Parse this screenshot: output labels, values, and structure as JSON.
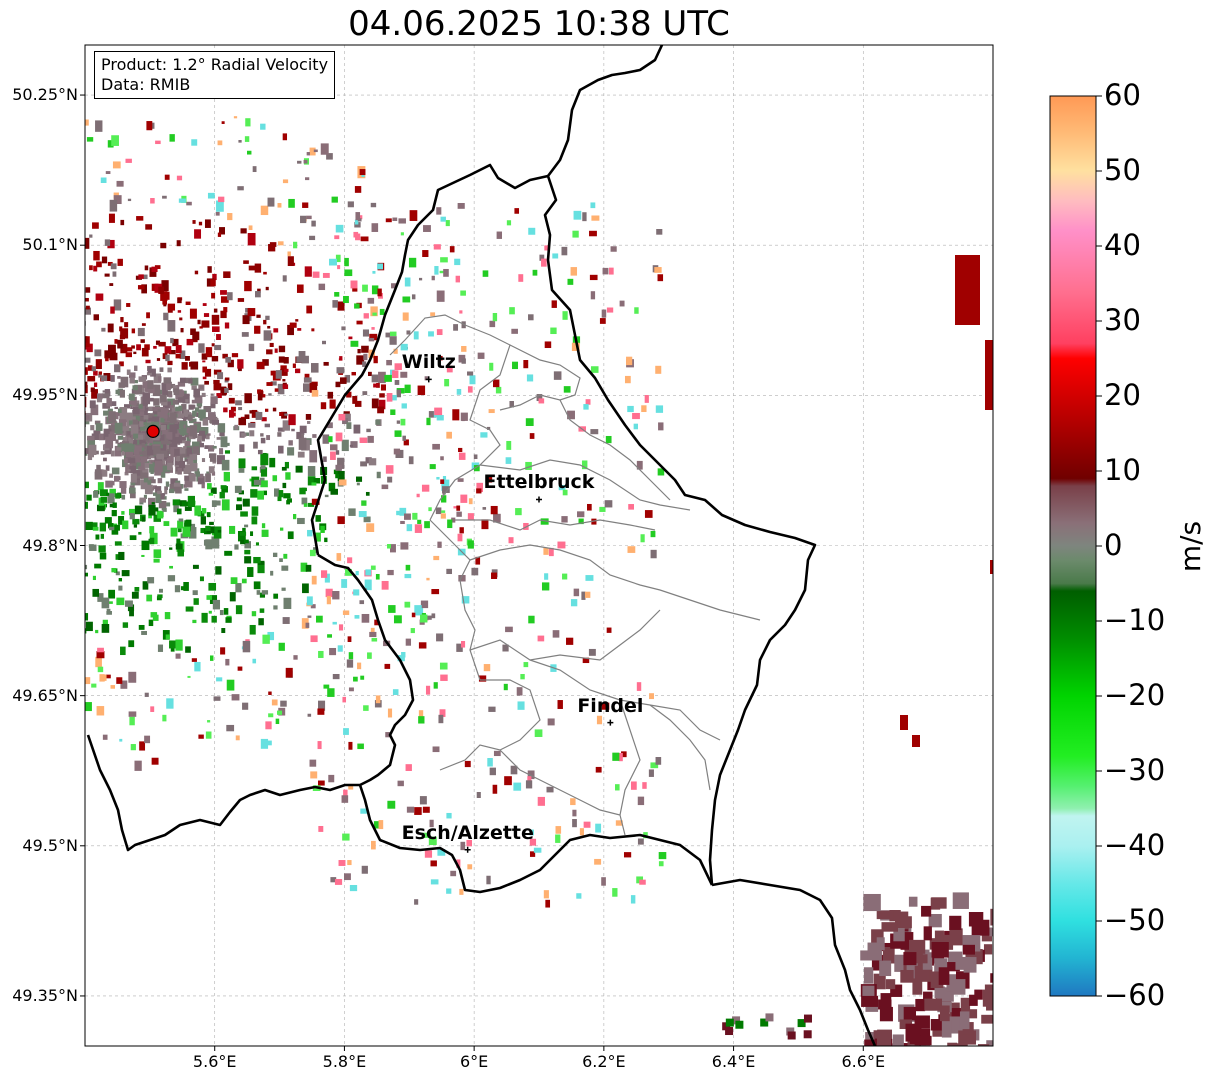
{
  "title": "04.06.2025 10:38 UTC",
  "info": {
    "product": "Product: 1.2° Radial Velocity",
    "data_source": "Data: RMIB"
  },
  "lat_ticks": [
    {
      "label": "50.25°N",
      "value": 50.25
    },
    {
      "label": "50.1°N",
      "value": 50.1
    },
    {
      "label": "49.95°N",
      "value": 49.95
    },
    {
      "label": "49.8°N",
      "value": 49.8
    },
    {
      "label": "49.65°N",
      "value": 49.65
    },
    {
      "label": "49.5°N",
      "value": 49.5
    },
    {
      "label": "49.35°N",
      "value": 49.35
    }
  ],
  "lon_ticks": [
    {
      "label": "5.6°E",
      "value": 5.6
    },
    {
      "label": "5.8°E",
      "value": 5.8
    },
    {
      "label": "6°E",
      "value": 6.0
    },
    {
      "label": "6.2°E",
      "value": 6.2
    },
    {
      "label": "6.4°E",
      "value": 6.4
    },
    {
      "label": "6.6°E",
      "value": 6.6
    }
  ],
  "extent": {
    "lon_min": 5.4,
    "lon_max": 6.8,
    "lat_min": 49.3,
    "lat_max": 50.3
  },
  "cities": [
    {
      "name": "Wiltz",
      "lon": 5.93,
      "lat": 49.966
    },
    {
      "name": "Ettelbruck",
      "lon": 6.1,
      "lat": 49.846
    },
    {
      "name": "Findel",
      "lon": 6.21,
      "lat": 49.623
    },
    {
      "name": "Esch/Alzette",
      "lon": 5.99,
      "lat": 49.496
    }
  ],
  "radar_site": {
    "lon": 5.505,
    "lat": 49.914
  },
  "colorbar": {
    "unit": "m/s",
    "min": -60,
    "max": 60,
    "ticks": [
      "60",
      "50",
      "40",
      "30",
      "20",
      "10",
      "0",
      "−10",
      "−20",
      "−30",
      "−40",
      "−50",
      "−60"
    ],
    "stops": [
      {
        "v": -60,
        "c": "#1f78c1"
      },
      {
        "v": -55,
        "c": "#22b4d2"
      },
      {
        "v": -50,
        "c": "#2fe0e0"
      },
      {
        "v": -45,
        "c": "#66e8e8"
      },
      {
        "v": -40,
        "c": "#aaf0f0"
      },
      {
        "v": -36,
        "c": "#c0f4f0"
      },
      {
        "v": -35,
        "c": "#90f0b0"
      },
      {
        "v": -32,
        "c": "#55f070"
      },
      {
        "v": -28,
        "c": "#22ee22"
      },
      {
        "v": -20,
        "c": "#00d400"
      },
      {
        "v": -12,
        "c": "#008a00"
      },
      {
        "v": -6,
        "c": "#005e00"
      },
      {
        "v": -5,
        "c": "#4a7a4a"
      },
      {
        "v": -2,
        "c": "#6b8a6b"
      },
      {
        "v": 0,
        "c": "#7e857e"
      },
      {
        "v": 3,
        "c": "#8a7078"
      },
      {
        "v": 8,
        "c": "#7a4049"
      },
      {
        "v": 9,
        "c": "#700000"
      },
      {
        "v": 18,
        "c": "#c00000"
      },
      {
        "v": 25,
        "c": "#ff0000"
      },
      {
        "v": 27,
        "c": "#ff4060"
      },
      {
        "v": 34,
        "c": "#ff7090"
      },
      {
        "v": 42,
        "c": "#ff90c8"
      },
      {
        "v": 46,
        "c": "#ffbcc0"
      },
      {
        "v": 50,
        "c": "#ffe0a0"
      },
      {
        "v": 55,
        "c": "#ffbb77"
      },
      {
        "v": 60,
        "c": "#ff9955"
      }
    ]
  }
}
